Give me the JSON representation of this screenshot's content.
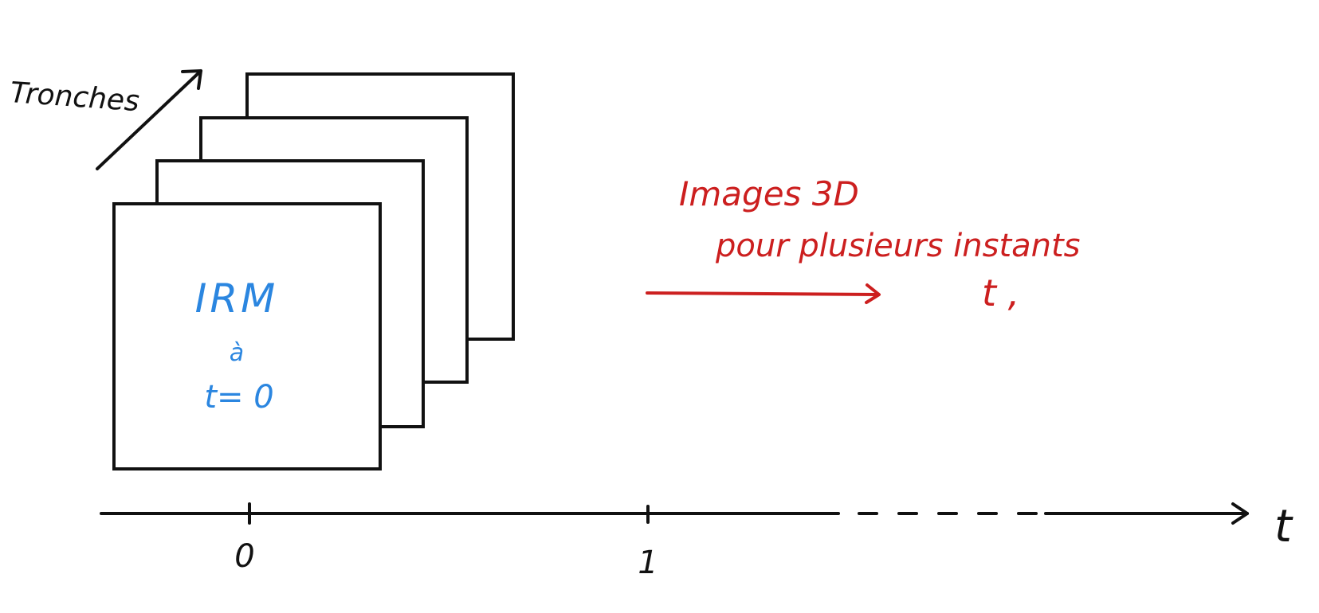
{
  "colors": {
    "ink": "#111111",
    "blue": "#2b86e0",
    "red": "#cc1f1f",
    "background": "#ffffff"
  },
  "slices": {
    "label": "Tronches",
    "count": 4,
    "front_text": {
      "line1": "IRM",
      "line2": "à",
      "line3": "t= 0"
    }
  },
  "annotation": {
    "line1": "Images 3D",
    "line2": "pour plusieurs instants",
    "line3": "t ,"
  },
  "axis": {
    "label": "t",
    "ticks": [
      "0",
      "1"
    ]
  }
}
